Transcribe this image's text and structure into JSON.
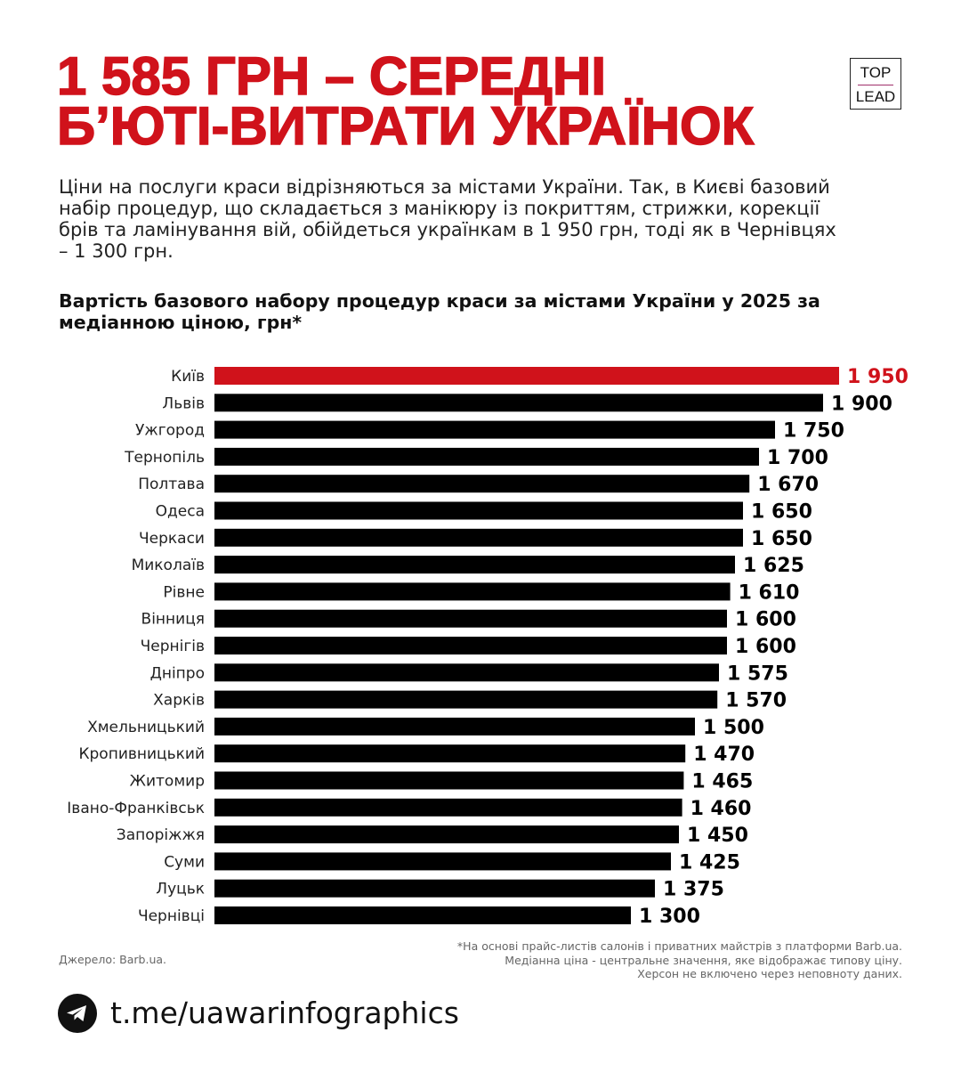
{
  "title": [
    "1 585 ГРН – СЕРЕДНІ",
    "Б’ЮТІ-ВИТРАТИ УКРАЇНОК"
  ],
  "logo": {
    "top": "TOP",
    "bottom": "LEAD"
  },
  "subtitle": "Ціни на послуги краси відрізняються за містами України. Так, в Києві базовий набір процедур, що складається з манікюру із покриттям, стрижки, корекції брів та ламінування вій, обійдеться українкам в 1 950 грн, тоді як в Чернівцях – 1 300 грн.",
  "colors": {
    "accent": "#d0121b",
    "bar": "#000000"
  },
  "chart_data": {
    "type": "bar",
    "orientation": "horizontal",
    "title": "Вартість базового набору процедур краси за містами України у 2025 за медіанною ціною, грн*",
    "categories": [
      "Київ",
      "Львів",
      "Ужгород",
      "Тернопіль",
      "Полтава",
      "Одеса",
      "Черкаси",
      "Миколаїв",
      "Рівне",
      "Вінниця",
      "Чернігів",
      "Дніпро",
      "Харків",
      "Хмельницький",
      "Кропивницький",
      "Житомир",
      "Івано-Франківськ",
      "Запоріжжя",
      "Суми",
      "Луцьк",
      "Чернівці"
    ],
    "values": [
      1950,
      1900,
      1750,
      1700,
      1670,
      1650,
      1650,
      1625,
      1610,
      1600,
      1600,
      1575,
      1570,
      1500,
      1470,
      1465,
      1460,
      1450,
      1425,
      1375,
      1300
    ],
    "value_labels": [
      "1 950",
      "1 900",
      "1 750",
      "1 700",
      "1 670",
      "1 650",
      "1 650",
      "1 625",
      "1 610",
      "1 600",
      "1 600",
      "1 575",
      "1 570",
      "1 500",
      "1 470",
      "1 465",
      "1 460",
      "1 450",
      "1 425",
      "1 375",
      "1 300"
    ],
    "highlight": "Київ",
    "xlim": [
      0,
      1950
    ]
  },
  "source": "Джерело: Barb.ua.",
  "notes": [
    "*На основі прайс-листів салонів і приватних майстрів з платформи Barb.ua.",
    "Медіанна ціна - центральне значення, яке відображає типову ціну.",
    "Херсон не включено через неповноту даних."
  ],
  "telegram": {
    "icon": "telegram-icon",
    "link": "t.me/uawarinfographics"
  }
}
